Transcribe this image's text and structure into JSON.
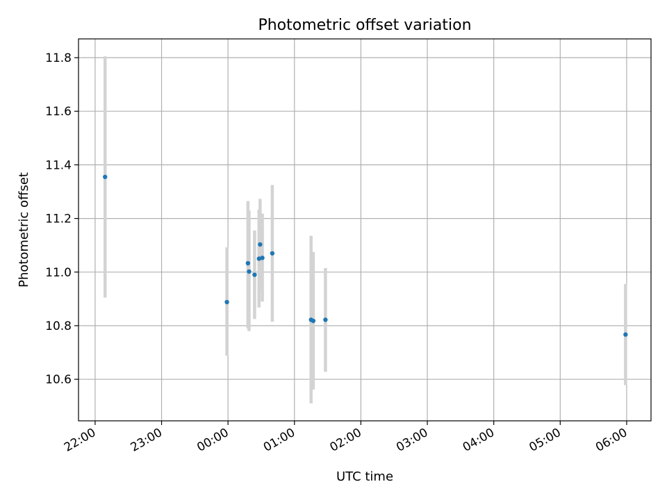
{
  "chart_data": {
    "type": "scatter",
    "title": "Photometric offset variation",
    "xlabel": "UTC time",
    "ylabel": "Photometric offset",
    "x_ticks": [
      "22:00",
      "23:00",
      "00:00",
      "01:00",
      "02:00",
      "03:00",
      "04:00",
      "05:00",
      "06:00"
    ],
    "y_ticks": [
      "10.6",
      "10.8",
      "11.0",
      "11.2",
      "11.4",
      "11.6",
      "11.8"
    ],
    "xlim": [
      "21:45",
      "06:22"
    ],
    "ylim": [
      10.445,
      11.87
    ],
    "grid": true,
    "colors": {
      "marker": "#1f77b4",
      "errorbar": "#d3d3d3"
    },
    "points": [
      {
        "t": "22:09",
        "y": 11.355,
        "ylo": 10.905,
        "yhi": 11.805
      },
      {
        "t": "23:59",
        "y": 10.888,
        "ylo": 10.688,
        "yhi": 11.092
      },
      {
        "t": "00:18",
        "y": 11.033,
        "ylo": 10.79,
        "yhi": 11.265
      },
      {
        "t": "00:19",
        "y": 11.002,
        "ylo": 10.78,
        "yhi": 11.23
      },
      {
        "t": "00:24",
        "y": 10.99,
        "ylo": 10.825,
        "yhi": 11.155
      },
      {
        "t": "00:28",
        "y": 11.05,
        "ylo": 10.868,
        "yhi": 11.233
      },
      {
        "t": "00:29",
        "y": 11.103,
        "ylo": 10.935,
        "yhi": 11.273
      },
      {
        "t": "00:31",
        "y": 11.053,
        "ylo": 10.89,
        "yhi": 11.218
      },
      {
        "t": "00:40",
        "y": 11.07,
        "ylo": 10.815,
        "yhi": 11.325
      },
      {
        "t": "01:15",
        "y": 10.822,
        "ylo": 10.51,
        "yhi": 11.135
      },
      {
        "t": "01:17",
        "y": 10.818,
        "ylo": 10.562,
        "yhi": 11.075
      },
      {
        "t": "01:28",
        "y": 10.822,
        "ylo": 10.628,
        "yhi": 11.015
      },
      {
        "t": "05:59",
        "y": 10.767,
        "ylo": 10.578,
        "yhi": 10.955
      }
    ]
  }
}
